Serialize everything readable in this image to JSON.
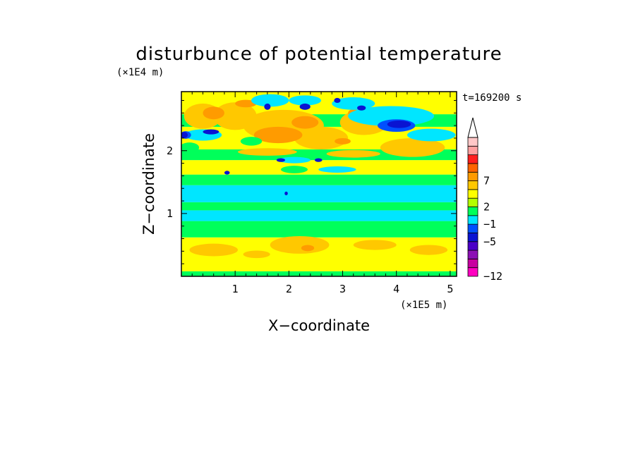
{
  "chart_data": {
    "type": "heatmap",
    "title": "disturbunce of potential temperature",
    "xlabel": "X−coordinate",
    "ylabel": "Z−coordinate",
    "x_unit": "(×1E5 m)",
    "y_unit": "(×1E4 m)",
    "timestamp": "t=169200 s",
    "xlim": [
      0,
      5.12
    ],
    "ylim": [
      0,
      2.94
    ],
    "x_ticks": [
      {
        "value": 1,
        "label": "1"
      },
      {
        "value": 2,
        "label": "2"
      },
      {
        "value": 3,
        "label": "3"
      },
      {
        "value": 4,
        "label": "4"
      },
      {
        "value": 5,
        "label": "5"
      }
    ],
    "y_ticks": [
      {
        "value": 1,
        "label": "1"
      },
      {
        "value": 2,
        "label": "2"
      }
    ],
    "colorbar": {
      "levels": [
        "−12",
        "−5",
        "−1",
        "2",
        "7"
      ],
      "colors": [
        "#ff00c0",
        "#c800a0",
        "#8c0fb4",
        "#4b00c8",
        "#0a14d2",
        "#0050ff",
        "#00e6ff",
        "#00ff5a",
        "#b4ff00",
        "#ffff00",
        "#ffc800",
        "#ff9b00",
        "#ff6400",
        "#ff1e1e",
        "#ffa0a0",
        "#ffc8c8"
      ],
      "extend": "max"
    },
    "bands": [
      {
        "z0": 0.0,
        "z1": 0.08,
        "color": "#00ff5a"
      },
      {
        "z0": 0.08,
        "z1": 0.62,
        "color": "#ffff00"
      },
      {
        "z0": 0.62,
        "z1": 0.88,
        "color": "#00ff5a"
      },
      {
        "z0": 0.88,
        "z1": 1.05,
        "color": "#00e6ff"
      },
      {
        "z0": 1.05,
        "z1": 1.18,
        "color": "#00ff5a"
      },
      {
        "z0": 1.18,
        "z1": 1.45,
        "color": "#00e6ff"
      },
      {
        "z0": 1.45,
        "z1": 1.62,
        "color": "#00ff5a"
      },
      {
        "z0": 1.62,
        "z1": 1.85,
        "color": "#ffff00"
      },
      {
        "z0": 1.85,
        "z1": 2.02,
        "color": "#00ff5a"
      },
      {
        "z0": 2.02,
        "z1": 2.38,
        "color": "#ffff00"
      },
      {
        "z0": 2.38,
        "z1": 2.58,
        "color": "#00ff5a"
      },
      {
        "z0": 2.58,
        "z1": 2.94,
        "color": "#ffff00"
      }
    ],
    "features": [
      {
        "x": 0.6,
        "z": 0.42,
        "rx": 0.45,
        "rz": 0.1,
        "color": "#ffc800"
      },
      {
        "x": 2.2,
        "z": 0.5,
        "rx": 0.55,
        "rz": 0.14,
        "color": "#ffc800"
      },
      {
        "x": 3.6,
        "z": 0.5,
        "rx": 0.4,
        "rz": 0.08,
        "color": "#ffc800"
      },
      {
        "x": 4.6,
        "z": 0.42,
        "rx": 0.35,
        "rz": 0.08,
        "color": "#ffc800"
      },
      {
        "x": 1.4,
        "z": 0.35,
        "rx": 0.25,
        "rz": 0.06,
        "color": "#ffc800"
      },
      {
        "x": 0.4,
        "z": 2.55,
        "rx": 0.35,
        "rz": 0.2,
        "color": "#ffc800"
      },
      {
        "x": 1.0,
        "z": 2.55,
        "rx": 0.4,
        "rz": 0.22,
        "color": "#ffc800"
      },
      {
        "x": 1.9,
        "z": 2.4,
        "rx": 0.75,
        "rz": 0.25,
        "color": "#ffc800"
      },
      {
        "x": 2.6,
        "z": 2.2,
        "rx": 0.5,
        "rz": 0.18,
        "color": "#ffc800"
      },
      {
        "x": 3.4,
        "z": 2.45,
        "rx": 0.45,
        "rz": 0.2,
        "color": "#ffc800"
      },
      {
        "x": 4.3,
        "z": 2.05,
        "rx": 0.6,
        "rz": 0.15,
        "color": "#ffc800"
      },
      {
        "x": 1.6,
        "z": 1.98,
        "rx": 0.55,
        "rz": 0.06,
        "color": "#ffc800"
      },
      {
        "x": 3.2,
        "z": 1.95,
        "rx": 0.5,
        "rz": 0.06,
        "color": "#ffc800"
      },
      {
        "x": 0.6,
        "z": 2.6,
        "rx": 0.2,
        "rz": 0.1,
        "color": "#ff9b00"
      },
      {
        "x": 1.8,
        "z": 2.25,
        "rx": 0.45,
        "rz": 0.13,
        "color": "#ff9b00"
      },
      {
        "x": 2.3,
        "z": 2.45,
        "rx": 0.25,
        "rz": 0.1,
        "color": "#ff9b00"
      },
      {
        "x": 1.2,
        "z": 2.75,
        "rx": 0.2,
        "rz": 0.06,
        "color": "#ff9b00"
      },
      {
        "x": 3.3,
        "z": 2.6,
        "rx": 0.2,
        "rz": 0.08,
        "color": "#ff9b00"
      },
      {
        "x": 3.0,
        "z": 2.15,
        "rx": 0.15,
        "rz": 0.05,
        "color": "#ff9b00"
      },
      {
        "x": 2.35,
        "z": 0.45,
        "rx": 0.12,
        "rz": 0.05,
        "color": "#ff9b00"
      },
      {
        "x": 0.15,
        "z": 2.05,
        "rx": 0.18,
        "rz": 0.08,
        "color": "#00ff5a"
      },
      {
        "x": 1.3,
        "z": 2.15,
        "rx": 0.2,
        "rz": 0.07,
        "color": "#00ff5a"
      },
      {
        "x": 2.1,
        "z": 1.7,
        "rx": 0.25,
        "rz": 0.06,
        "color": "#00ff5a"
      },
      {
        "x": 3.9,
        "z": 2.55,
        "rx": 0.8,
        "rz": 0.16,
        "color": "#00e6ff"
      },
      {
        "x": 4.65,
        "z": 2.25,
        "rx": 0.45,
        "rz": 0.1,
        "color": "#00e6ff"
      },
      {
        "x": 0.4,
        "z": 2.25,
        "rx": 0.35,
        "rz": 0.09,
        "color": "#00e6ff"
      },
      {
        "x": 1.65,
        "z": 2.8,
        "rx": 0.35,
        "rz": 0.1,
        "color": "#00e6ff"
      },
      {
        "x": 2.3,
        "z": 2.8,
        "rx": 0.3,
        "rz": 0.08,
        "color": "#00e6ff"
      },
      {
        "x": 3.2,
        "z": 2.75,
        "rx": 0.4,
        "rz": 0.1,
        "color": "#00e6ff"
      },
      {
        "x": 2.1,
        "z": 1.85,
        "rx": 0.3,
        "rz": 0.05,
        "color": "#00e6ff"
      },
      {
        "x": 2.9,
        "z": 1.7,
        "rx": 0.35,
        "rz": 0.05,
        "color": "#00e6ff"
      },
      {
        "x": 4.0,
        "z": 2.4,
        "rx": 0.35,
        "rz": 0.1,
        "color": "#0050ff"
      },
      {
        "x": 0.08,
        "z": 2.25,
        "rx": 0.1,
        "rz": 0.06,
        "color": "#0050ff"
      },
      {
        "x": 4.05,
        "z": 2.42,
        "rx": 0.22,
        "rz": 0.06,
        "color": "#0a14d2"
      },
      {
        "x": 0.05,
        "z": 2.25,
        "rx": 0.07,
        "rz": 0.05,
        "color": "#0a14d2"
      },
      {
        "x": 0.55,
        "z": 2.3,
        "rx": 0.15,
        "rz": 0.04,
        "color": "#0a14d2"
      },
      {
        "x": 1.6,
        "z": 2.7,
        "rx": 0.06,
        "rz": 0.05,
        "color": "#0a14d2"
      },
      {
        "x": 2.3,
        "z": 2.7,
        "rx": 0.1,
        "rz": 0.05,
        "color": "#0a14d2"
      },
      {
        "x": 3.35,
        "z": 2.68,
        "rx": 0.08,
        "rz": 0.04,
        "color": "#0a14d2"
      },
      {
        "x": 1.85,
        "z": 1.85,
        "rx": 0.08,
        "rz": 0.03,
        "color": "#0a14d2"
      },
      {
        "x": 2.55,
        "z": 1.85,
        "rx": 0.07,
        "rz": 0.03,
        "color": "#0a14d2"
      },
      {
        "x": 2.9,
        "z": 2.8,
        "rx": 0.06,
        "rz": 0.04,
        "color": "#0a14d2"
      },
      {
        "x": 0.85,
        "z": 1.65,
        "rx": 0.05,
        "rz": 0.03,
        "color": "#0a14d2"
      },
      {
        "x": 1.95,
        "z": 1.32,
        "rx": 0.03,
        "rz": 0.03,
        "color": "#0a14d2"
      }
    ]
  }
}
